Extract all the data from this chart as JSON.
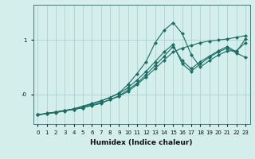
{
  "title": "",
  "xlabel": "Humidex (Indice chaleur)",
  "background_color": "#d4eeeb",
  "grid_color": "#aad4cf",
  "line_color": "#1a6e64",
  "xlim": [
    -0.5,
    23.5
  ],
  "ylim": [
    -0.55,
    1.65
  ],
  "yticks": [
    0.0,
    1.0
  ],
  "ytick_labels": [
    "-0",
    "1"
  ],
  "xticks": [
    0,
    1,
    2,
    3,
    4,
    5,
    6,
    7,
    8,
    9,
    10,
    11,
    12,
    13,
    14,
    15,
    16,
    17,
    18,
    19,
    20,
    21,
    22,
    23
  ],
  "line1_x": [
    0,
    1,
    2,
    3,
    4,
    5,
    6,
    7,
    8,
    9,
    10,
    11,
    12,
    13,
    14,
    15,
    16,
    17,
    18,
    19,
    20,
    21,
    22,
    23
  ],
  "line1_y": [
    -0.38,
    -0.35,
    -0.33,
    -0.3,
    -0.28,
    -0.25,
    -0.2,
    -0.16,
    -0.1,
    -0.04,
    0.05,
    0.18,
    0.32,
    0.47,
    0.63,
    0.78,
    0.85,
    0.9,
    0.95,
    0.98,
    1.0,
    1.02,
    1.05,
    1.08
  ],
  "line2_x": [
    0,
    2,
    3,
    4,
    5,
    6,
    7,
    8,
    9,
    10,
    11,
    12,
    13,
    14,
    15,
    16,
    17,
    18,
    19,
    20,
    21,
    22,
    23
  ],
  "line2_y": [
    -0.38,
    -0.33,
    -0.3,
    -0.27,
    -0.22,
    -0.17,
    -0.12,
    -0.06,
    0.02,
    0.18,
    0.38,
    0.6,
    0.95,
    1.18,
    1.32,
    1.12,
    0.73,
    0.5,
    0.62,
    0.72,
    0.8,
    0.8,
    0.95
  ],
  "line3_x": [
    0,
    1,
    2,
    3,
    4,
    5,
    6,
    7,
    8,
    9,
    10,
    11,
    12,
    13,
    14,
    15,
    16,
    17,
    18,
    19,
    20,
    21,
    22,
    23
  ],
  "line3_y": [
    -0.38,
    -0.36,
    -0.34,
    -0.31,
    -0.28,
    -0.25,
    -0.21,
    -0.17,
    -0.1,
    -0.03,
    0.08,
    0.2,
    0.36,
    0.53,
    0.7,
    0.88,
    0.62,
    0.47,
    0.6,
    0.7,
    0.8,
    0.88,
    0.78,
    1.02
  ],
  "line4_x": [
    0,
    1,
    2,
    3,
    4,
    5,
    6,
    7,
    8,
    9,
    10,
    11,
    12,
    13,
    14,
    15,
    16,
    17,
    18,
    19,
    20,
    21,
    22,
    23
  ],
  "line4_y": [
    -0.38,
    -0.36,
    -0.33,
    -0.3,
    -0.27,
    -0.23,
    -0.18,
    -0.13,
    -0.06,
    0.01,
    0.12,
    0.26,
    0.42,
    0.6,
    0.78,
    0.92,
    0.56,
    0.42,
    0.56,
    0.68,
    0.78,
    0.85,
    0.76,
    0.68
  ]
}
